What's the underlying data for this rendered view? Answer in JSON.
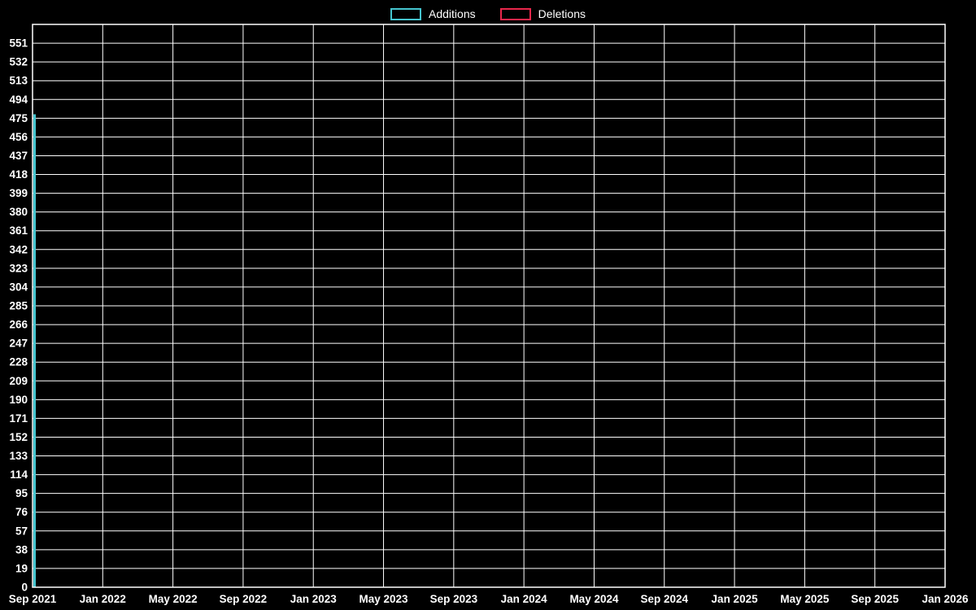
{
  "legend": {
    "items": [
      {
        "label": "Additions",
        "color": "#45c5cf"
      },
      {
        "label": "Deletions",
        "color": "#e8274b"
      }
    ]
  },
  "chart_data": {
    "type": "bar",
    "title": "",
    "xlabel": "",
    "ylabel": "",
    "background_color": "#000000",
    "grid_color": "#ffffff",
    "text_color": "#ffffff",
    "grid": true,
    "legend_position": "top-center",
    "ylim": [
      0,
      570
    ],
    "y_tick_values": [
      0,
      19,
      38,
      57,
      76,
      95,
      114,
      133,
      152,
      171,
      190,
      209,
      228,
      247,
      266,
      285,
      304,
      323,
      342,
      361,
      380,
      399,
      418,
      437,
      456,
      475,
      494,
      513,
      532,
      551
    ],
    "x_tick_labels": [
      "Sep 2021",
      "Jan 2022",
      "May 2022",
      "Sep 2022",
      "Jan 2023",
      "May 2023",
      "Sep 2023",
      "Jan 2024",
      "May 2024",
      "Sep 2024",
      "Jan 2025",
      "May 2025",
      "Sep 2025",
      "Jan 2026"
    ],
    "series": [
      {
        "name": "Additions",
        "color": "#45c5cf",
        "points": [
          {
            "x": "Sep 2021",
            "value": 479
          }
        ]
      },
      {
        "name": "Deletions",
        "color": "#e8274b",
        "points": [
          {
            "x": "Sep 2021",
            "value": 0
          }
        ]
      }
    ]
  }
}
